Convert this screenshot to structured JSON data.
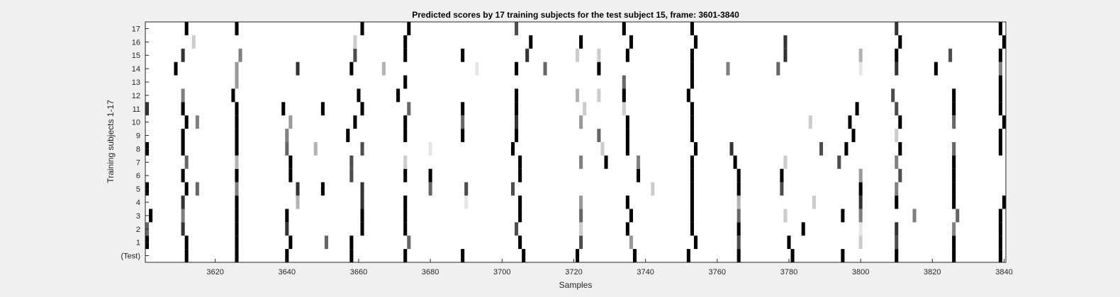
{
  "chart_data": {
    "type": "heatmap",
    "title": "Predicted scores by 17 training subjects for the test subject 15, frame: 3601-3840",
    "xlabel": "Samples",
    "ylabel": "Training subjects 1-17",
    "xlim": [
      3601,
      3840
    ],
    "x_ticks": [
      3620,
      3640,
      3660,
      3680,
      3700,
      3720,
      3740,
      3760,
      3780,
      3800,
      3820,
      3840
    ],
    "y_tick_labels": [
      "(Test)",
      "1",
      "2",
      "3",
      "4",
      "5",
      "6",
      "7",
      "8",
      "9",
      "10",
      "11",
      "12",
      "13",
      "14",
      "15",
      "16",
      "17"
    ],
    "colormap": "gray (0 = black, 1 = white)",
    "background_value": 1.0,
    "grid": false,
    "marks": [
      {
        "row": "(Test)",
        "cells": [
          [
            3612,
            0
          ],
          [
            3626,
            0
          ],
          [
            3640,
            0
          ],
          [
            3658,
            0
          ],
          [
            3673,
            0
          ],
          [
            3689,
            0
          ],
          [
            3706,
            0
          ],
          [
            3721,
            0
          ],
          [
            3737,
            0
          ],
          [
            3752,
            0
          ],
          [
            3766,
            0
          ],
          [
            3781,
            0
          ],
          [
            3795,
            0
          ],
          [
            3810,
            0
          ],
          [
            3826,
            0
          ],
          [
            3839,
            0
          ]
        ]
      },
      {
        "row": "1",
        "cells": [
          [
            3601,
            0
          ],
          [
            3612,
            0
          ],
          [
            3626,
            0
          ],
          [
            3641,
            0
          ],
          [
            3651,
            0.4
          ],
          [
            3658,
            0
          ],
          [
            3674,
            0.4
          ],
          [
            3705,
            0
          ],
          [
            3722,
            0.3
          ],
          [
            3736,
            0.6
          ],
          [
            3754,
            0
          ],
          [
            3766,
            0.3
          ],
          [
            3780,
            0
          ],
          [
            3800,
            0.8
          ],
          [
            3810,
            0.3
          ],
          [
            3826,
            0
          ],
          [
            3839,
            0
          ]
        ]
      },
      {
        "row": "2",
        "cells": [
          [
            3601,
            0.4
          ],
          [
            3611,
            0.2
          ],
          [
            3626,
            0
          ],
          [
            3640,
            0.2
          ],
          [
            3661,
            0
          ],
          [
            3673,
            0
          ],
          [
            3704,
            0.3
          ],
          [
            3722,
            0.8
          ],
          [
            3735,
            0
          ],
          [
            3753,
            0
          ],
          [
            3766,
            0
          ],
          [
            3784,
            0
          ],
          [
            3800,
            0.9
          ],
          [
            3810,
            0.2
          ],
          [
            3826,
            0.5
          ],
          [
            3839,
            0
          ]
        ]
      },
      {
        "row": "3",
        "cells": [
          [
            3602,
            0
          ],
          [
            3611,
            0.5
          ],
          [
            3626,
            0
          ],
          [
            3640,
            0
          ],
          [
            3661,
            0
          ],
          [
            3673,
            0
          ],
          [
            3705,
            0
          ],
          [
            3722,
            0.4
          ],
          [
            3736,
            0
          ],
          [
            3753,
            0
          ],
          [
            3766,
            0.4
          ],
          [
            3779,
            0.8
          ],
          [
            3795,
            0
          ],
          [
            3800,
            0.5
          ],
          [
            3815,
            0.5
          ],
          [
            3827,
            0.4
          ],
          [
            3839,
            0
          ]
        ]
      },
      {
        "row": "4",
        "cells": [
          [
            3611,
            0.2
          ],
          [
            3626,
            0
          ],
          [
            3643,
            0.7
          ],
          [
            3661,
            0.2
          ],
          [
            3673,
            0
          ],
          [
            3690,
            0.9
          ],
          [
            3705,
            0
          ],
          [
            3722,
            0.6
          ],
          [
            3735,
            0
          ],
          [
            3753,
            0
          ],
          [
            3766,
            0.7
          ],
          [
            3787,
            0.8
          ],
          [
            3800,
            0.2
          ],
          [
            3810,
            0
          ],
          [
            3826,
            0
          ],
          [
            3840,
            0
          ]
        ]
      },
      {
        "row": "5",
        "cells": [
          [
            3601,
            0
          ],
          [
            3612,
            0
          ],
          [
            3615,
            0.4
          ],
          [
            3626,
            0.5
          ],
          [
            3643,
            0.2
          ],
          [
            3650,
            0
          ],
          [
            3661,
            0.2
          ],
          [
            3680,
            0.4
          ],
          [
            3690,
            0.3
          ],
          [
            3703,
            0.3
          ],
          [
            3742,
            0.8
          ],
          [
            3753,
            0
          ],
          [
            3766,
            0
          ],
          [
            3778,
            0.3
          ],
          [
            3800,
            0
          ],
          [
            3810,
            0.5
          ],
          [
            3826,
            0
          ]
        ]
      },
      {
        "row": "6",
        "cells": [
          [
            3611,
            0
          ],
          [
            3626,
            0
          ],
          [
            3641,
            0
          ],
          [
            3658,
            0.3
          ],
          [
            3673,
            0
          ],
          [
            3680,
            0
          ],
          [
            3705,
            0
          ],
          [
            3738,
            0
          ],
          [
            3753,
            0
          ],
          [
            3766,
            0
          ],
          [
            3778,
            0
          ],
          [
            3800,
            0.6
          ],
          [
            3811,
            0.3
          ],
          [
            3826,
            0
          ]
        ]
      },
      {
        "row": "7",
        "cells": [
          [
            3612,
            0.4
          ],
          [
            3626,
            0.7
          ],
          [
            3641,
            0
          ],
          [
            3658,
            0.3
          ],
          [
            3673,
            0.8
          ],
          [
            3705,
            0
          ],
          [
            3722,
            0.5
          ],
          [
            3729,
            0
          ],
          [
            3738,
            0.5
          ],
          [
            3753,
            0
          ],
          [
            3765,
            0
          ],
          [
            3779,
            0.8
          ],
          [
            3794,
            0.3
          ],
          [
            3810,
            0.5
          ],
          [
            3826,
            0
          ]
        ]
      },
      {
        "row": "8",
        "cells": [
          [
            3601,
            0
          ],
          [
            3611,
            0
          ],
          [
            3626,
            0
          ],
          [
            3640,
            0.4
          ],
          [
            3648,
            0.7
          ],
          [
            3661,
            0.3
          ],
          [
            3680,
            0.9
          ],
          [
            3703,
            0
          ],
          [
            3728,
            0.8
          ],
          [
            3735,
            0
          ],
          [
            3754,
            0
          ],
          [
            3764,
            0.2
          ],
          [
            3789,
            0.3
          ],
          [
            3796,
            0
          ],
          [
            3811,
            0
          ],
          [
            3826,
            0.4
          ],
          [
            3839,
            0
          ]
        ]
      },
      {
        "row": "9",
        "cells": [
          [
            3611,
            0
          ],
          [
            3626,
            0
          ],
          [
            3640,
            0.5
          ],
          [
            3657,
            0
          ],
          [
            3673,
            0
          ],
          [
            3689,
            0
          ],
          [
            3704,
            0
          ],
          [
            3727,
            0.4
          ],
          [
            3735,
            0
          ],
          [
            3753,
            0
          ],
          [
            3798,
            0
          ],
          [
            3810,
            0.8
          ],
          [
            3839,
            0
          ]
        ]
      },
      {
        "row": "10",
        "cells": [
          [
            3612,
            0
          ],
          [
            3615,
            0.5
          ],
          [
            3626,
            0
          ],
          [
            3641,
            0.6
          ],
          [
            3659,
            0
          ],
          [
            3673,
            0
          ],
          [
            3689,
            0.4
          ],
          [
            3704,
            0.2
          ],
          [
            3722,
            0.6
          ],
          [
            3735,
            0
          ],
          [
            3753,
            0
          ],
          [
            3786,
            0.8
          ],
          [
            3797,
            0
          ],
          [
            3811,
            0
          ],
          [
            3826,
            0.4
          ],
          [
            3840,
            0
          ]
        ]
      },
      {
        "row": "11",
        "cells": [
          [
            3601,
            0.2
          ],
          [
            3611,
            0
          ],
          [
            3626,
            0
          ],
          [
            3639,
            0
          ],
          [
            3650,
            0
          ],
          [
            3661,
            0
          ],
          [
            3674,
            0.4
          ],
          [
            3689,
            0
          ],
          [
            3704,
            0
          ],
          [
            3723,
            0.8
          ],
          [
            3734,
            0.8
          ],
          [
            3753,
            0
          ],
          [
            3799,
            0
          ],
          [
            3810,
            0.3
          ],
          [
            3826,
            0
          ],
          [
            3839,
            0
          ]
        ]
      },
      {
        "row": "12",
        "cells": [
          [
            3611,
            0.5
          ],
          [
            3625,
            0
          ],
          [
            3660,
            0
          ],
          [
            3671,
            0
          ],
          [
            3704,
            0
          ],
          [
            3721,
            0.7
          ],
          [
            3727,
            0.8
          ],
          [
            3734,
            0
          ],
          [
            3752,
            0
          ],
          [
            3809,
            0.3
          ],
          [
            3826,
            0
          ],
          [
            3839,
            0
          ]
        ]
      },
      {
        "row": "13",
        "cells": [
          [
            3626,
            0.6
          ],
          [
            3673,
            0
          ],
          [
            3734,
            0.4
          ],
          [
            3753,
            0
          ],
          [
            3839,
            0
          ]
        ]
      },
      {
        "row": "14",
        "cells": [
          [
            3609,
            0
          ],
          [
            3626,
            0.6
          ],
          [
            3643,
            0.2
          ],
          [
            3658,
            0
          ],
          [
            3667,
            0.7
          ],
          [
            3693,
            0.9
          ],
          [
            3704,
            0
          ],
          [
            3712,
            0.4
          ],
          [
            3727,
            0
          ],
          [
            3753,
            0
          ],
          [
            3763,
            0.5
          ],
          [
            3777,
            0.4
          ],
          [
            3800,
            0.9
          ],
          [
            3810,
            0.2
          ],
          [
            3821,
            0
          ],
          [
            3839,
            0.5
          ]
        ]
      },
      {
        "row": "15",
        "cells": [
          [
            3611,
            0.2
          ],
          [
            3627,
            0.5
          ],
          [
            3659,
            0.3
          ],
          [
            3673,
            0
          ],
          [
            3689,
            0
          ],
          [
            3707,
            0.2
          ],
          [
            3721,
            0.8
          ],
          [
            3727,
            0.8
          ],
          [
            3735,
            0
          ],
          [
            3753,
            0
          ],
          [
            3779,
            0.2
          ],
          [
            3800,
            0.7
          ],
          [
            3810,
            0
          ],
          [
            3825,
            0.3
          ],
          [
            3839,
            0
          ]
        ]
      },
      {
        "row": "16",
        "cells": [
          [
            3614,
            0.8
          ],
          [
            3659,
            0.8
          ],
          [
            3673,
            0
          ],
          [
            3708,
            0
          ],
          [
            3722,
            0
          ],
          [
            3736,
            0
          ],
          [
            3754,
            0
          ],
          [
            3779,
            0.2
          ],
          [
            3811,
            0
          ],
          [
            3840,
            0
          ]
        ]
      },
      {
        "row": "17",
        "cells": [
          [
            3612,
            0
          ],
          [
            3626,
            0
          ],
          [
            3661,
            0
          ],
          [
            3674,
            0
          ],
          [
            3704,
            0.3
          ],
          [
            3734,
            0
          ],
          [
            3753,
            0
          ],
          [
            3810,
            0.2
          ],
          [
            3839,
            0
          ]
        ]
      }
    ]
  }
}
